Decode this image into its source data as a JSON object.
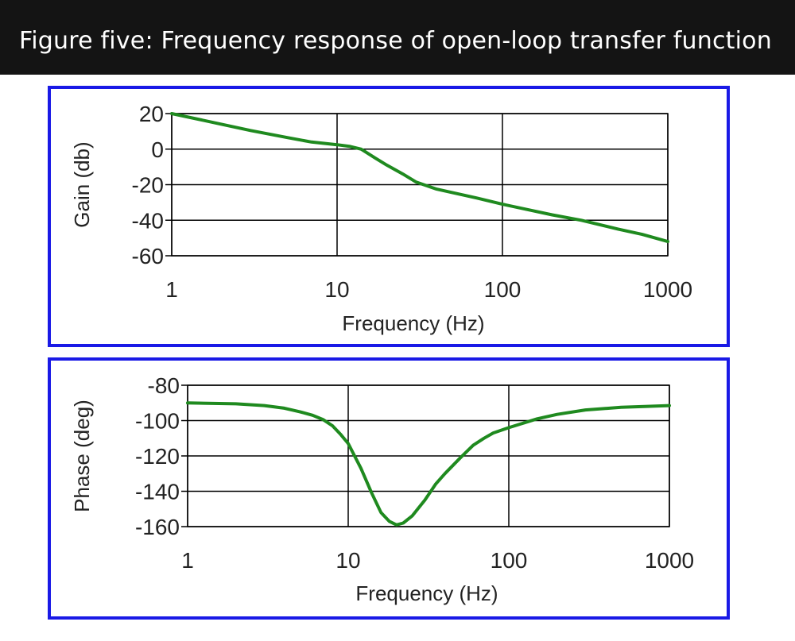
{
  "banner": {
    "title": "Figure five: Frequency response of open-loop transfer function"
  },
  "colors": {
    "banner_bg": "#141414",
    "panel_border": "#1a1ae6",
    "curve": "#1f8a1f",
    "grid": "#000000"
  },
  "chart_data": [
    {
      "type": "line",
      "title": "",
      "xlabel": "Frequency (Hz)",
      "ylabel": "Gain (db)",
      "xscale": "log",
      "xlim": [
        1,
        1000
      ],
      "ylim": [
        -60,
        20
      ],
      "xticks": [
        "1",
        "10",
        "100",
        "1000"
      ],
      "yticks": [
        "20",
        "0",
        "-20",
        "-40",
        "-60"
      ],
      "grid": true,
      "series": [
        {
          "x": [
            1,
            2,
            3,
            5,
            7,
            10,
            12,
            14,
            17,
            20,
            25,
            30,
            40,
            50,
            70,
            100,
            150,
            200,
            300,
            500,
            700,
            1000
          ],
          "y": [
            20,
            14,
            10.5,
            6.5,
            4,
            2.5,
            1.5,
            0,
            -5,
            -9,
            -14,
            -18.5,
            -22.5,
            -24.5,
            -27.5,
            -31,
            -34.5,
            -37,
            -40,
            -45,
            -48,
            -52
          ]
        }
      ]
    },
    {
      "type": "line",
      "title": "",
      "xlabel": "Frequency (Hz)",
      "ylabel": "Phase (deg)",
      "xscale": "log",
      "xlim": [
        1,
        1000
      ],
      "ylim": [
        -160,
        -80
      ],
      "xticks": [
        "1",
        "10",
        "100",
        "1000"
      ],
      "yticks": [
        "-80",
        "-100",
        "-120",
        "-140",
        "-160"
      ],
      "grid": true,
      "series": [
        {
          "x": [
            1,
            2,
            3,
            4,
            5,
            6,
            7,
            8,
            9,
            10,
            12,
            14,
            16,
            18,
            20,
            22,
            25,
            30,
            35,
            40,
            50,
            60,
            70,
            80,
            100,
            150,
            200,
            300,
            500,
            700,
            1000
          ],
          "y": [
            -90,
            -90.5,
            -91.5,
            -93,
            -95,
            -97,
            -99.5,
            -103,
            -108,
            -113,
            -127,
            -141,
            -152,
            -157,
            -159,
            -158,
            -154,
            -145,
            -136,
            -130,
            -121,
            -114,
            -110,
            -107,
            -104,
            -99,
            -96.5,
            -94,
            -92.5,
            -92,
            -91.5
          ]
        }
      ]
    }
  ]
}
